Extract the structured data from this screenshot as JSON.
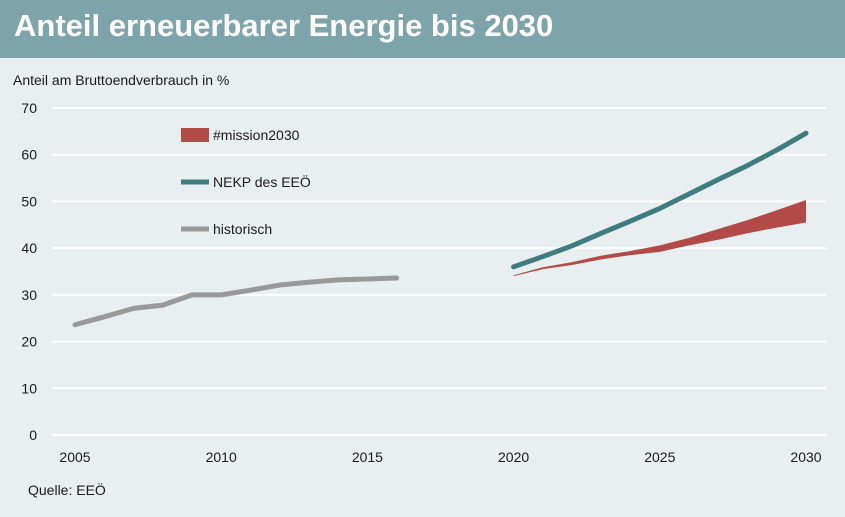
{
  "header": {
    "title": "Anteil erneuerbarer Energie bis 2030"
  },
  "footer": {
    "source": "Quelle: EEÖ"
  },
  "colors": {
    "title_bar": "#7ea4ab",
    "background": "#e9eef1",
    "mission_band": "#b24b47",
    "nekp_line": "#3e7c80",
    "historisch_line": "#999999",
    "grid": "#ffffff"
  },
  "chart_data": {
    "type": "line",
    "title": "Anteil erneuerbarer Energie bis 2030",
    "ylabel": "Anteil am Bruttoendverbrauch in %",
    "xlabel": "",
    "xlim": [
      2005,
      2030
    ],
    "ylim": [
      0,
      70
    ],
    "x_ticks": [
      2005,
      2010,
      2015,
      2020,
      2025,
      2030
    ],
    "y_ticks": [
      0,
      10,
      20,
      30,
      40,
      50,
      60,
      70
    ],
    "grid": true,
    "legend_position": "top-left",
    "legend": [
      {
        "key": "mission",
        "label": "#mission2030",
        "style": "band"
      },
      {
        "key": "nekp",
        "label": "NEKP des EEÖ",
        "style": "line"
      },
      {
        "key": "historisch",
        "label": "historisch",
        "style": "line"
      }
    ],
    "series": [
      {
        "key": "historisch",
        "name": "historisch",
        "type": "line",
        "x": [
          2005,
          2006,
          2007,
          2008,
          2009,
          2010,
          2011,
          2012,
          2013,
          2014,
          2015,
          2016
        ],
        "y": [
          23.6,
          25.3,
          27.1,
          27.8,
          30.0,
          30.0,
          31.0,
          32.1,
          32.7,
          33.2,
          33.4,
          33.6
        ]
      },
      {
        "key": "nekp",
        "name": "NEKP des EEÖ",
        "type": "line",
        "x": [
          2020,
          2021,
          2022,
          2023,
          2024,
          2025,
          2026,
          2027,
          2028,
          2029,
          2030
        ],
        "y": [
          36.0,
          38.2,
          40.5,
          43.2,
          45.8,
          48.5,
          51.6,
          54.7,
          57.7,
          61.0,
          64.6
        ]
      },
      {
        "key": "mission",
        "name": "#mission2030",
        "type": "band",
        "x": [
          2020,
          2021,
          2022,
          2023,
          2024,
          2025,
          2026,
          2027,
          2028,
          2029,
          2030
        ],
        "lower": [
          34.0,
          35.5,
          36.4,
          37.6,
          38.5,
          39.2,
          40.6,
          41.8,
          43.2,
          44.4,
          45.5
        ],
        "upper": [
          34.2,
          35.9,
          37.0,
          38.4,
          39.4,
          40.6,
          42.2,
          44.1,
          46.0,
          48.1,
          50.3
        ]
      }
    ]
  }
}
